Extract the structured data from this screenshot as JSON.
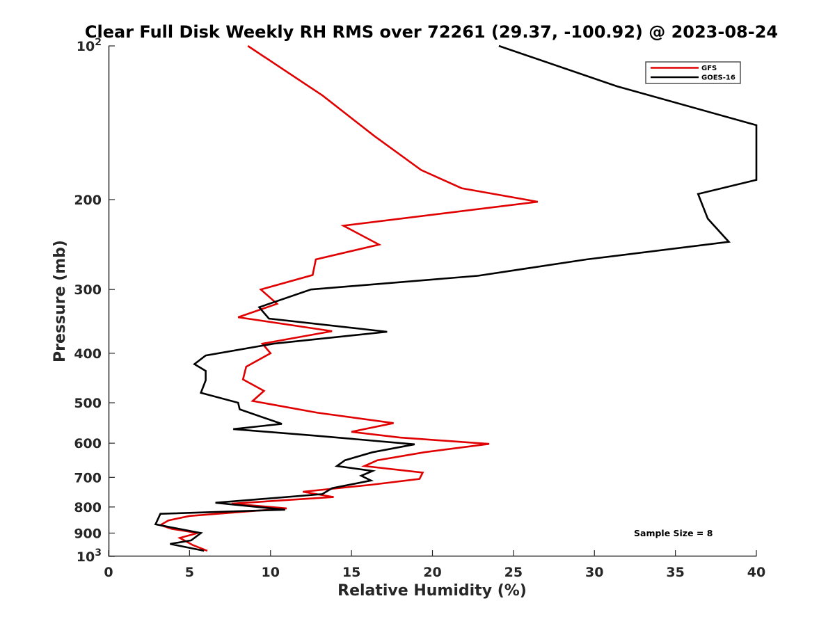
{
  "chart_data": {
    "type": "line",
    "title": "Clear Full Disk Weekly RH RMS over 72261 (29.37, -100.92) @ 2023-08-24",
    "xlabel": "Relative Humidity (%)",
    "ylabel": "Pressure (mb)",
    "xlim": [
      0,
      40
    ],
    "ylim": [
      100,
      1000
    ],
    "yscale": "log",
    "y_reversed": true,
    "xticks": [
      0,
      5,
      10,
      15,
      20,
      25,
      30,
      35,
      40
    ],
    "xtick_labels": [
      "0",
      "5",
      "10",
      "15",
      "20",
      "25",
      "30",
      "35",
      "40"
    ],
    "yticks": [
      100,
      200,
      300,
      400,
      500,
      600,
      700,
      800,
      900,
      1000
    ],
    "ytick_labels": [
      {
        "base": "10",
        "exp": "2"
      },
      {
        "base": "200",
        "exp": ""
      },
      {
        "base": "300",
        "exp": ""
      },
      {
        "base": "400",
        "exp": ""
      },
      {
        "base": "500",
        "exp": ""
      },
      {
        "base": "600",
        "exp": ""
      },
      {
        "base": "700",
        "exp": ""
      },
      {
        "base": "800",
        "exp": ""
      },
      {
        "base": "900",
        "exp": ""
      },
      {
        "base": "10",
        "exp": "3"
      }
    ],
    "legend_position": "top-right",
    "annotation": "Sample Size = 8",
    "series": [
      {
        "name": "GFS",
        "color": "#e00000",
        "points": [
          [
            8.6,
            100
          ],
          [
            13.2,
            125
          ],
          [
            16.4,
            150
          ],
          [
            19.3,
            175
          ],
          [
            21.8,
            190
          ],
          [
            26.5,
            202
          ],
          [
            14.5,
            225
          ],
          [
            16.7,
            245
          ],
          [
            12.8,
            262
          ],
          [
            12.6,
            281
          ],
          [
            9.4,
            300
          ],
          [
            10.4,
            320
          ],
          [
            8.0,
            340
          ],
          [
            13.8,
            362
          ],
          [
            9.5,
            383
          ],
          [
            10.0,
            400
          ],
          [
            8.5,
            425
          ],
          [
            8.3,
            450
          ],
          [
            9.6,
            474
          ],
          [
            8.9,
            496
          ],
          [
            12.9,
            523
          ],
          [
            17.6,
            548
          ],
          [
            15.0,
            570
          ],
          [
            18.0,
            585
          ],
          [
            23.5,
            602
          ],
          [
            19.5,
            625
          ],
          [
            16.6,
            648
          ],
          [
            15.8,
            665
          ],
          [
            19.4,
            685
          ],
          [
            19.2,
            705
          ],
          [
            16.2,
            724
          ],
          [
            12.0,
            747
          ],
          [
            13.9,
            765
          ],
          [
            7.6,
            788
          ],
          [
            11.0,
            805
          ],
          [
            5.0,
            833
          ],
          [
            3.7,
            850
          ],
          [
            3.2,
            868
          ],
          [
            3.9,
            883
          ],
          [
            5.5,
            900
          ],
          [
            4.4,
            920
          ],
          [
            5.2,
            950
          ],
          [
            6.1,
            975
          ]
        ]
      },
      {
        "name": "GOES-16",
        "color": "#000000",
        "points": [
          [
            24.1,
            100
          ],
          [
            31.4,
            120
          ],
          [
            40.0,
            143
          ],
          [
            40.0,
            183
          ],
          [
            36.4,
            195
          ],
          [
            37.0,
            218
          ],
          [
            38.3,
            242
          ],
          [
            29.5,
            262
          ],
          [
            22.8,
            282
          ],
          [
            12.5,
            300
          ],
          [
            9.3,
            325
          ],
          [
            9.9,
            342
          ],
          [
            17.2,
            363
          ],
          [
            10.2,
            383
          ],
          [
            6.0,
            404
          ],
          [
            5.3,
            420
          ],
          [
            6.0,
            433
          ],
          [
            6.0,
            452
          ],
          [
            5.7,
            478
          ],
          [
            8.0,
            500
          ],
          [
            8.1,
            515
          ],
          [
            10.7,
            550
          ],
          [
            7.7,
            563
          ],
          [
            12.8,
            580
          ],
          [
            18.9,
            603
          ],
          [
            16.3,
            625
          ],
          [
            14.6,
            648
          ],
          [
            14.1,
            665
          ],
          [
            16.3,
            680
          ],
          [
            15.6,
            695
          ],
          [
            16.2,
            710
          ],
          [
            13.8,
            735
          ],
          [
            13.2,
            755
          ],
          [
            6.6,
            785
          ],
          [
            10.9,
            810
          ],
          [
            3.2,
            825
          ],
          [
            2.9,
            865
          ],
          [
            5.7,
            900
          ],
          [
            5.1,
            930
          ],
          [
            3.8,
            945
          ],
          [
            5.9,
            975
          ]
        ]
      }
    ]
  }
}
